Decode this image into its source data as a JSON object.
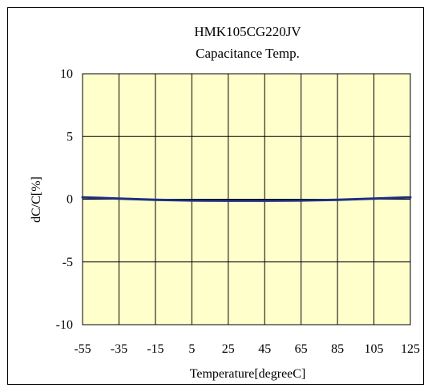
{
  "chart_data": {
    "type": "line",
    "title": "HMK105CG220JV",
    "subtitle": "Capacitance Temp.",
    "xlabel": "Temperature[degreeC]",
    "ylabel": "dC/C[%]",
    "x": [
      -55,
      -35,
      -15,
      5,
      25,
      45,
      65,
      85,
      105,
      125
    ],
    "x_ticks": [
      "-55",
      "-35",
      "-15",
      "5",
      "25",
      "45",
      "65",
      "85",
      "105",
      "125"
    ],
    "y_ticks": [
      "10",
      "5",
      "0",
      "-5",
      "-10"
    ],
    "xlim": [
      -55,
      125
    ],
    "ylim": [
      -10,
      10
    ],
    "grid": true,
    "plot_background": "#FFFFCC",
    "series": [
      {
        "color": "#1F2F7F",
        "values": [
          0.15,
          0.05,
          -0.05,
          -0.1,
          -0.12,
          -0.12,
          -0.1,
          -0.05,
          0.05,
          0.15
        ]
      }
    ]
  }
}
